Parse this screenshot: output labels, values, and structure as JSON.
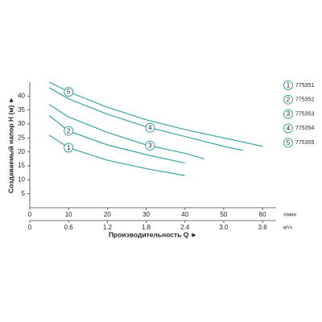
{
  "chart_data": {
    "type": "line",
    "y_label": "Создаваемый напор H (м) ►",
    "x_label": "Производительность Q ►",
    "x_unit": "л/мин",
    "x2_unit": "м³/ч",
    "xlim": [
      0,
      63.5
    ],
    "xticks": [
      0,
      10,
      20,
      30,
      40,
      50,
      60
    ],
    "x2lim": [
      0,
      3.81
    ],
    "x2ticks": [
      0,
      0.6,
      1.2,
      1.8,
      2.4,
      {
        "value": 3,
        "label": "3.0"
      },
      3.6
    ],
    "ylim": [
      0,
      45
    ],
    "yticks": [
      5,
      10,
      15,
      20,
      25,
      30,
      35,
      40
    ],
    "series": [
      {
        "id": "1",
        "name": "775351",
        "color": "#3aa3a6",
        "x": [
          5,
          10,
          20,
          30,
          40
        ],
        "values": [
          26,
          21.5,
          17,
          14,
          11.5
        ]
      },
      {
        "id": "2",
        "name": "775352",
        "color": "#3aa3a6",
        "x": [
          5,
          10,
          20,
          30,
          40
        ],
        "values": [
          33,
          27.5,
          22.5,
          19,
          16
        ]
      },
      {
        "id": "3",
        "name": "775353",
        "color": "#3aa3a6",
        "x": [
          5,
          10,
          20,
          30,
          40,
          45
        ],
        "values": [
          37,
          32.5,
          27,
          22.5,
          19.5,
          17.5
        ]
      },
      {
        "id": "4",
        "name": "775354",
        "color": "#3aa3a6",
        "x": [
          5,
          10,
          20,
          30,
          40,
          50,
          55
        ],
        "values": [
          43,
          39,
          33.5,
          29,
          25.5,
          22,
          20.5
        ]
      },
      {
        "id": "5",
        "name": "775355",
        "color": "#3aa3a6",
        "x": [
          5,
          10,
          20,
          30,
          40,
          50,
          60
        ],
        "values": [
          45,
          41.5,
          36,
          31.5,
          28,
          25,
          22
        ]
      }
    ]
  }
}
